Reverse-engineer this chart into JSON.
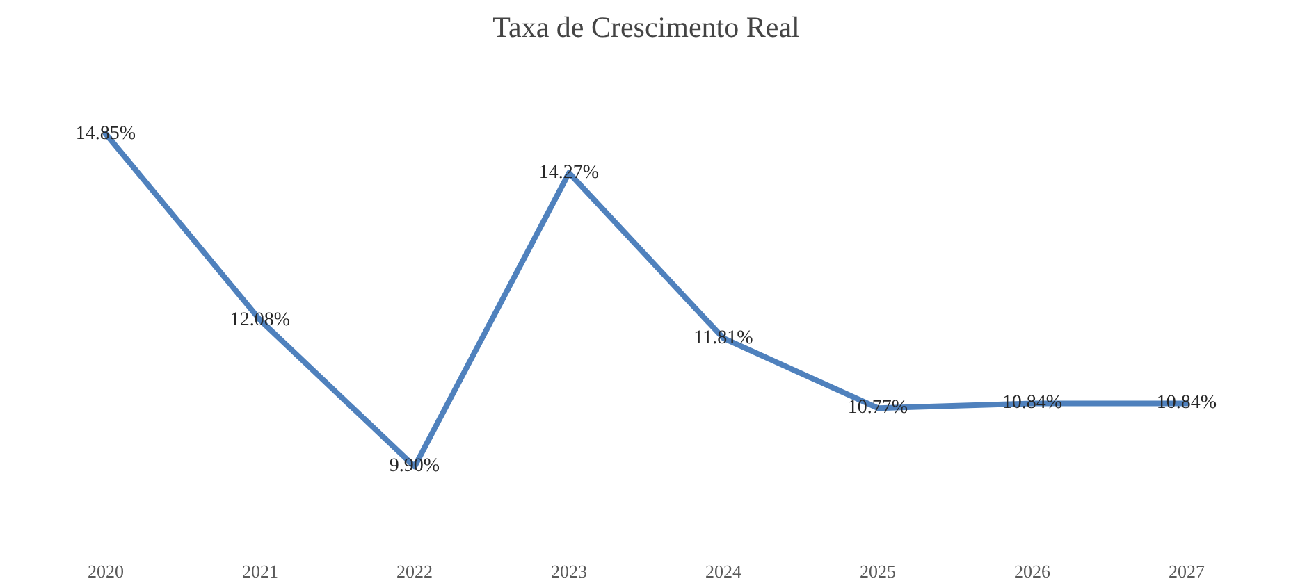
{
  "chart_data": {
    "type": "line",
    "title": "Taxa de Crescimento Real",
    "categories": [
      "2020",
      "2021",
      "2022",
      "2023",
      "2024",
      "2025",
      "2026",
      "2027"
    ],
    "series": [
      {
        "color": "#4f81bd",
        "values": [
          14.85,
          12.08,
          9.9,
          14.27,
          11.81,
          10.77,
          10.84,
          10.84
        ],
        "value_labels": [
          "14.85%",
          "12.08%",
          "9.90%",
          "14.27%",
          "11.81%",
          "10.77%",
          "10.84%",
          "10.84%"
        ]
      }
    ],
    "tick_labels": "x",
    "grid": false,
    "line_style": "solid"
  }
}
